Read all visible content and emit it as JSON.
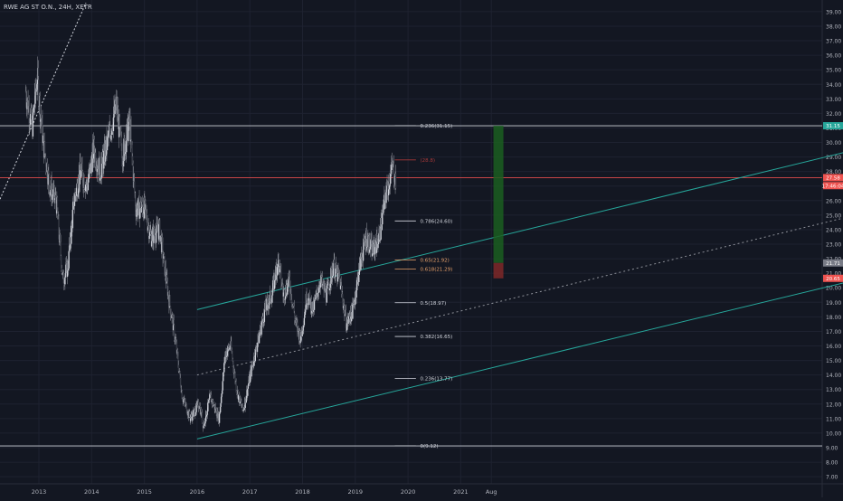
{
  "header": {
    "symbol": "RWE AG ST O.N., 24H, XETR"
  },
  "chart_data": {
    "type": "candlestick",
    "x_labels": [
      "2013",
      "2014",
      "2015",
      "2016",
      "2017",
      "2018",
      "2019",
      "2020",
      "2021",
      "Aug"
    ],
    "y_ticks": [
      "39.00",
      "38.00",
      "37.00",
      "36.00",
      "35.00",
      "34.00",
      "33.00",
      "32.00",
      "31.00",
      "30.00",
      "29.00",
      "28.00",
      "27.00",
      "26.00",
      "25.00",
      "24.00",
      "23.00",
      "22.00",
      "21.00",
      "20.00",
      "19.00",
      "18.00",
      "17.00",
      "16.00",
      "15.00",
      "14.00",
      "13.00",
      "12.00",
      "11.00",
      "10.00",
      "9.00",
      "8.00",
      "7.00"
    ],
    "ylim": [
      6.5,
      39.6
    ],
    "price_series": [
      [
        "2012-10-01",
        33.5
      ],
      [
        "2012-11-15",
        31.0
      ],
      [
        "2012-12-20",
        34.5
      ],
      [
        "2013-02-01",
        30.0
      ],
      [
        "2013-03-15",
        27.0
      ],
      [
        "2013-05-01",
        25.8
      ],
      [
        "2013-06-15",
        20.5
      ],
      [
        "2013-07-20",
        21.5
      ],
      [
        "2013-09-01",
        26.0
      ],
      [
        "2013-10-15",
        28.0
      ],
      [
        "2013-12-01",
        27.0
      ],
      [
        "2014-01-15",
        29.5
      ],
      [
        "2014-03-01",
        28.0
      ],
      [
        "2014-05-01",
        30.5
      ],
      [
        "2014-06-20",
        32.5
      ],
      [
        "2014-08-01",
        29.0
      ],
      [
        "2014-09-20",
        31.5
      ],
      [
        "2014-11-01",
        25.5
      ],
      [
        "2015-01-01",
        25.5
      ],
      [
        "2015-02-15",
        23.5
      ],
      [
        "2015-04-15",
        24.0
      ],
      [
        "2015-06-15",
        19.5
      ],
      [
        "2015-08-01",
        16.5
      ],
      [
        "2015-09-20",
        12.5
      ],
      [
        "2015-11-15",
        11.0
      ],
      [
        "2016-01-15",
        12.0
      ],
      [
        "2016-02-15",
        10.5
      ],
      [
        "2016-04-01",
        12.5
      ],
      [
        "2016-06-01",
        11.0
      ],
      [
        "2016-07-15",
        15.5
      ],
      [
        "2016-08-20",
        16.0
      ],
      [
        "2016-10-01",
        13.0
      ],
      [
        "2016-11-15",
        11.5
      ],
      [
        "2017-01-15",
        14.5
      ],
      [
        "2017-03-01",
        16.5
      ],
      [
        "2017-04-15",
        18.5
      ],
      [
        "2017-06-01",
        19.5
      ],
      [
        "2017-07-15",
        22.0
      ],
      [
        "2017-08-20",
        19.5
      ],
      [
        "2017-10-01",
        20.5
      ],
      [
        "2017-11-15",
        17.5
      ],
      [
        "2017-12-20",
        16.5
      ],
      [
        "2018-02-01",
        19.5
      ],
      [
        "2018-03-15",
        18.5
      ],
      [
        "2018-05-01",
        20.5
      ],
      [
        "2018-06-15",
        19.5
      ],
      [
        "2018-08-01",
        21.5
      ],
      [
        "2018-09-15",
        20.5
      ],
      [
        "2018-11-01",
        17.5
      ],
      [
        "2018-12-15",
        18.5
      ],
      [
        "2019-02-01",
        21.5
      ],
      [
        "2019-03-15",
        23.5
      ],
      [
        "2019-05-01",
        22.5
      ],
      [
        "2019-06-15",
        23.5
      ],
      [
        "2019-08-01",
        26.5
      ],
      [
        "2019-09-15",
        28.3
      ],
      [
        "2019-10-10",
        27.3
      ]
    ],
    "fib_levels": [
      {
        "label": "0.236(31.15)",
        "value": 31.15,
        "color": "#d1d4dc"
      },
      {
        "label": "(28.8)",
        "value": 28.8,
        "color": "#a83a3a"
      },
      {
        "label": "0.786(24.60)",
        "value": 24.6,
        "color": "#d1d4dc"
      },
      {
        "label": "0.65(21.92)",
        "value": 21.92,
        "color": "#e8a26b"
      },
      {
        "label": "0.618(21.29)",
        "value": 21.29,
        "color": "#e8a26b"
      },
      {
        "label": "0.5(18.97)",
        "value": 18.97,
        "color": "#d1d4dc"
      },
      {
        "label": "0.382(16.65)",
        "value": 16.65,
        "color": "#d1d4dc"
      },
      {
        "label": "0.236(13.77)",
        "value": 13.77,
        "color": "#d1d4dc"
      },
      {
        "label": "0(9.12)",
        "value": 9.12,
        "color": "#d1d4dc"
      }
    ],
    "horizontal_lines": [
      {
        "name": "resistance-line",
        "value": 31.15,
        "color": "#d1d4dc"
      },
      {
        "name": "current-price-line",
        "value": 27.58,
        "color": "#e04b4b"
      },
      {
        "name": "support-line",
        "value": 9.12,
        "color": "#d1d4dc"
      }
    ],
    "price_tags": [
      {
        "text": "31.15",
        "value": 31.15,
        "bg": "#26a69a"
      },
      {
        "text": "27.58",
        "value": 27.58,
        "bg": "#ef5350"
      },
      {
        "text": "17:46:04",
        "value": 27.03,
        "bg": "#ef5350"
      },
      {
        "text": "21.71",
        "value": 21.71,
        "bg": "#787b86"
      },
      {
        "text": "20.65",
        "value": 20.65,
        "bg": "#ef5350"
      }
    ],
    "channel": {
      "color": "#26a69a",
      "upper": [
        [
          16.0,
          18.5
        ],
        [
          34.5,
          34.8
        ]
      ],
      "lower": [
        [
          16.0,
          9.6
        ],
        [
          34.5,
          25.8
        ]
      ],
      "mid": [
        [
          16.0,
          14.0
        ],
        [
          34.5,
          30.3
        ]
      ]
    },
    "position": {
      "entry": 21.71,
      "target": 31.15,
      "stop": 20.65
    },
    "colors": {
      "background": "#131722",
      "grid": "#1e2230",
      "candle_up": "#d1d4dc",
      "candle_down": "#363a45",
      "profit_zone": "#1b5e20",
      "loss_zone": "#7f2828"
    }
  }
}
